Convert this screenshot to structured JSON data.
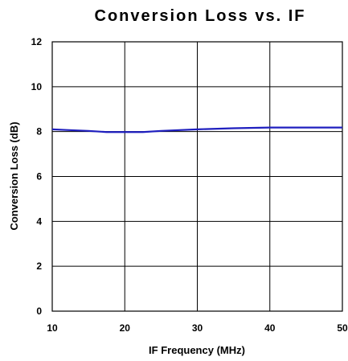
{
  "chart_data": {
    "type": "line",
    "title": "Conversion Loss vs. IF",
    "xlabel": "IF Frequency (MHz)",
    "ylabel": "Conversion Loss (dB)",
    "xlim": [
      10,
      50
    ],
    "ylim": [
      0,
      12
    ],
    "x_ticks": [
      10,
      20,
      30,
      40,
      50
    ],
    "y_ticks": [
      0,
      2,
      4,
      6,
      8,
      10,
      12
    ],
    "grid": true,
    "series": [
      {
        "color": "#1f1fbf",
        "x": [
          10,
          12,
          15,
          17.5,
          20,
          22.5,
          25,
          30,
          35,
          40,
          45,
          50
        ],
        "y": [
          8.1,
          8.07,
          8.03,
          7.98,
          7.98,
          7.98,
          8.03,
          8.1,
          8.15,
          8.18,
          8.18,
          8.18
        ]
      }
    ]
  }
}
